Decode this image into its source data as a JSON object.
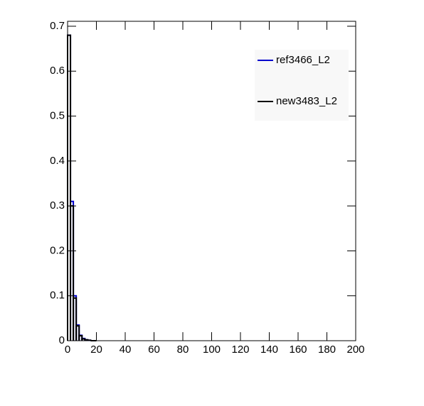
{
  "chart_data": {
    "type": "histogram",
    "bins": [
      0,
      2,
      4,
      6,
      8,
      10,
      12,
      14,
      16,
      18,
      20
    ],
    "series": [
      {
        "name": "ref3466_L2",
        "color": "#0000cc",
        "values": [
          0.68,
          0.31,
          0.1,
          0.035,
          0.012,
          0.005,
          0.002,
          0.001,
          0,
          0
        ]
      },
      {
        "name": "new3483_L2",
        "color": "#000000",
        "values": [
          0.68,
          0.3,
          0.095,
          0.033,
          0.011,
          0.004,
          0.002,
          0.001,
          0,
          0
        ]
      }
    ],
    "xlim": [
      0,
      200
    ],
    "xticks": [
      0,
      20,
      40,
      60,
      80,
      100,
      120,
      140,
      160,
      180,
      200
    ],
    "ylim": [
      0,
      0.711
    ],
    "yticks": [
      0,
      0.1,
      0.2,
      0.3,
      0.4,
      0.5,
      0.6,
      0.7
    ],
    "legend": "upper right"
  }
}
